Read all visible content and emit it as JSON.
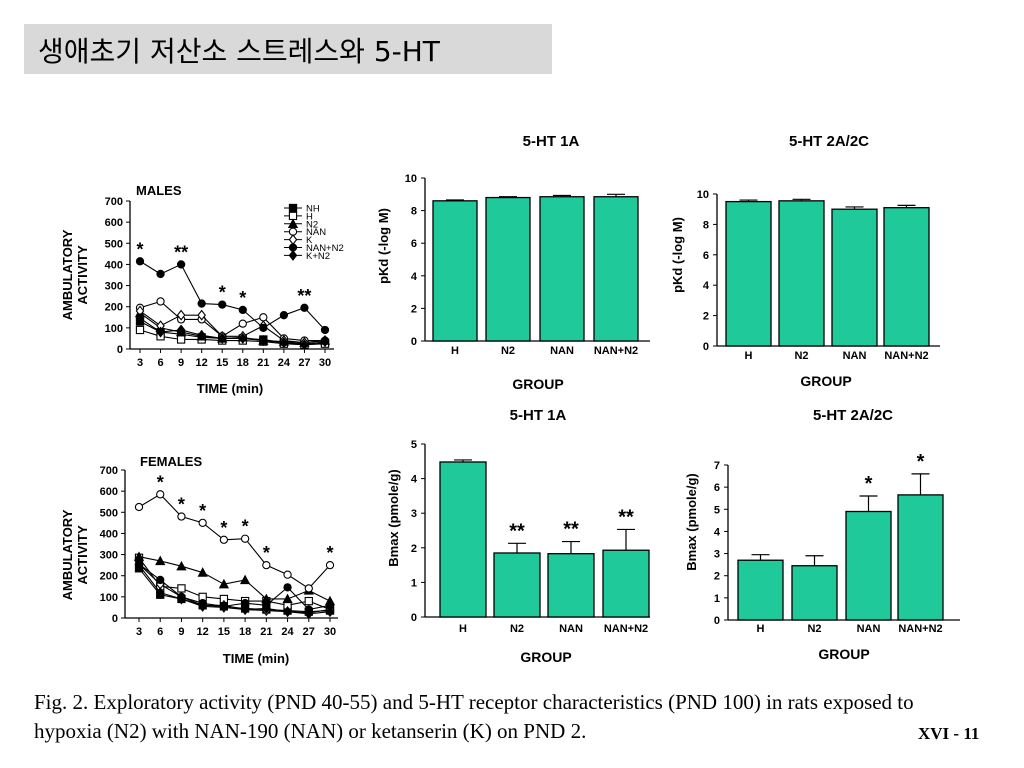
{
  "slide": {
    "title": "생애초기 저산소 스트레스와 5-HT",
    "caption": "Fig. 2. Exploratory activity (PND 40-55) and 5-HT receptor characteristics (PND 100) in rats exposed to hypoxia (N2) with NAN-190 (NAN) or ketanserin (K) on PND 2.",
    "slide_number": "XVI - 11",
    "bar_color": "#1fc99a"
  },
  "chart_data": [
    {
      "type": "line",
      "title": "MALES",
      "ylabel": "AMBULATORY ACTIVITY",
      "xlabel": "TIME (min)",
      "x": [
        3,
        6,
        9,
        12,
        15,
        18,
        21,
        24,
        27,
        30
      ],
      "ylim": [
        0,
        700
      ],
      "yticks": [
        0,
        100,
        200,
        300,
        400,
        500,
        600,
        700
      ],
      "legend_position": "top-right",
      "series": [
        {
          "name": "NH",
          "marker": "square-filled",
          "values": [
            130,
            80,
            70,
            55,
            50,
            50,
            45,
            30,
            25,
            30
          ]
        },
        {
          "name": "H",
          "marker": "square-open",
          "values": [
            90,
            60,
            45,
            45,
            40,
            40,
            35,
            25,
            20,
            25
          ]
        },
        {
          "name": "N2",
          "marker": "triangle-filled",
          "values": [
            170,
            100,
            80,
            60,
            50,
            55,
            40,
            35,
            30,
            40
          ]
        },
        {
          "name": "NAN",
          "marker": "circle-open",
          "values": [
            195,
            225,
            140,
            140,
            60,
            120,
            150,
            50,
            40,
            40
          ]
        },
        {
          "name": "K",
          "marker": "diamond-open",
          "values": [
            180,
            110,
            160,
            160,
            60,
            60,
            110,
            40,
            30,
            40
          ]
        },
        {
          "name": "NAN+N2",
          "marker": "circle-filled",
          "values": [
            415,
            355,
            400,
            215,
            210,
            185,
            100,
            160,
            195,
            90
          ]
        },
        {
          "name": "K+N2",
          "marker": "diamond-filled",
          "values": [
            145,
            80,
            90,
            65,
            50,
            50,
            40,
            30,
            20,
            35
          ]
        }
      ],
      "annotations": [
        {
          "text": "*",
          "x": 3,
          "y": 415
        },
        {
          "text": "**",
          "x": 9,
          "y": 400
        },
        {
          "text": "*",
          "x": 15,
          "y": 210
        },
        {
          "text": "*",
          "x": 18,
          "y": 185
        },
        {
          "text": "**",
          "x": 27,
          "y": 195
        }
      ]
    },
    {
      "type": "line",
      "title": "FEMALES",
      "ylabel": "AMBULATORY ACTIVITY",
      "xlabel": "TIME (min)",
      "x": [
        3,
        6,
        9,
        12,
        15,
        18,
        21,
        24,
        27,
        30
      ],
      "ylim": [
        0,
        700
      ],
      "yticks": [
        0,
        100,
        200,
        300,
        400,
        500,
        600,
        700
      ],
      "series": [
        {
          "name": "NH",
          "marker": "square-filled",
          "values": [
            235,
            110,
            90,
            60,
            55,
            45,
            40,
            35,
            30,
            35
          ]
        },
        {
          "name": "H",
          "marker": "square-open",
          "values": [
            285,
            150,
            140,
            100,
            90,
            80,
            80,
            60,
            80,
            40
          ]
        },
        {
          "name": "N2",
          "marker": "triangle-filled",
          "values": [
            290,
            270,
            245,
            215,
            160,
            180,
            90,
            90,
            130,
            80
          ]
        },
        {
          "name": "NAN",
          "marker": "circle-open",
          "values": [
            525,
            585,
            480,
            450,
            370,
            375,
            250,
            205,
            140,
            250
          ]
        },
        {
          "name": "K",
          "marker": "diamond-open",
          "values": [
            255,
            160,
            100,
            60,
            60,
            40,
            35,
            30,
            25,
            40
          ]
        },
        {
          "name": "NAN+N2",
          "marker": "circle-filled",
          "values": [
            255,
            180,
            100,
            70,
            55,
            70,
            60,
            145,
            40,
            60
          ]
        },
        {
          "name": "K+N2",
          "marker": "diamond-filled",
          "values": [
            250,
            120,
            90,
            55,
            50,
            40,
            45,
            30,
            20,
            30
          ]
        }
      ],
      "annotations": [
        {
          "text": "*",
          "x": 6,
          "y": 585
        },
        {
          "text": "*",
          "x": 9,
          "y": 480
        },
        {
          "text": "*",
          "x": 12,
          "y": 450
        },
        {
          "text": "*",
          "x": 15,
          "y": 370
        },
        {
          "text": "*",
          "x": 18,
          "y": 375
        },
        {
          "text": "*",
          "x": 21,
          "y": 250
        },
        {
          "text": "*",
          "x": 30,
          "y": 250
        }
      ]
    },
    {
      "type": "bar",
      "title": "5-HT 1A",
      "ylabel": "pKd (-log M)",
      "xlabel": "GROUP",
      "categories": [
        "H",
        "N2",
        "NAN",
        "NAN+N2"
      ],
      "values": [
        8.6,
        8.8,
        8.85,
        8.85
      ],
      "errors": [
        0.05,
        0.05,
        0.08,
        0.15
      ],
      "ylim": [
        0,
        10
      ],
      "yticks": [
        0,
        2,
        4,
        6,
        8,
        10
      ],
      "stars": [
        "",
        "",
        "",
        ""
      ]
    },
    {
      "type": "bar",
      "title": "5-HT 2A/2C",
      "ylabel": "pKd (-log M)",
      "xlabel": "GROUP",
      "categories": [
        "H",
        "N2",
        "NAN",
        "NAN+N2"
      ],
      "values": [
        9.5,
        9.55,
        9.0,
        9.1
      ],
      "errors": [
        0.1,
        0.1,
        0.15,
        0.15
      ],
      "ylim": [
        0,
        10
      ],
      "yticks": [
        0,
        2,
        4,
        6,
        8,
        10
      ],
      "stars": [
        "",
        "",
        "",
        ""
      ]
    },
    {
      "type": "bar",
      "title": "5-HT 1A",
      "ylabel": "Bmax (pmole/g)",
      "xlabel": "GROUP",
      "categories": [
        "H",
        "N2",
        "NAN",
        "NAN+N2"
      ],
      "values": [
        4.48,
        1.85,
        1.83,
        1.93
      ],
      "errors": [
        0.06,
        0.28,
        0.35,
        0.6
      ],
      "ylim": [
        0,
        5
      ],
      "yticks": [
        0,
        1,
        2,
        3,
        4,
        5
      ],
      "stars": [
        "",
        "**",
        "**",
        "**"
      ]
    },
    {
      "type": "bar",
      "title": "5-HT 2A/2C",
      "ylabel": "Bmax (pmole/g)",
      "xlabel": "GROUP",
      "categories": [
        "H",
        "N2",
        "NAN",
        "NAN+N2"
      ],
      "values": [
        2.7,
        2.45,
        4.9,
        5.65
      ],
      "errors": [
        0.25,
        0.45,
        0.7,
        0.95
      ],
      "ylim": [
        0,
        7
      ],
      "yticks": [
        0,
        1,
        2,
        3,
        4,
        5,
        6,
        7
      ],
      "stars": [
        "",
        "",
        "*",
        "*"
      ]
    }
  ]
}
